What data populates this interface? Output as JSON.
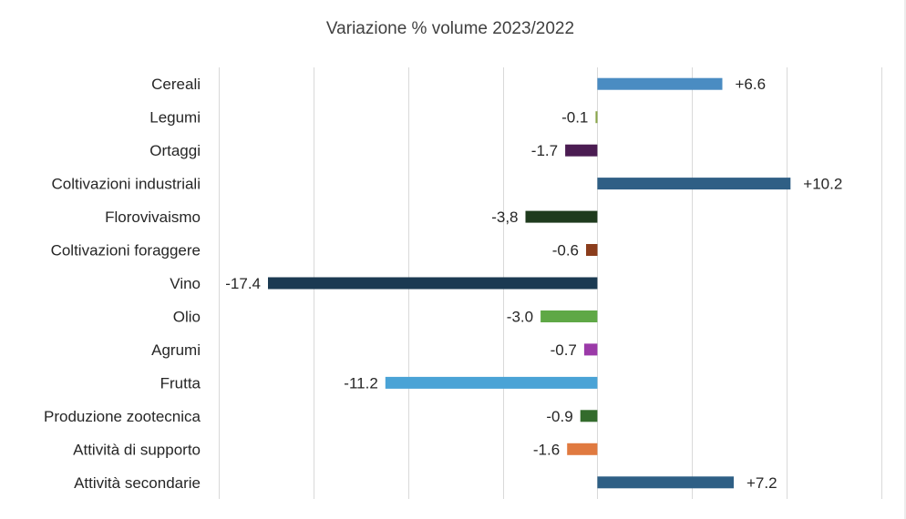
{
  "chart_data": {
    "type": "bar",
    "orientation": "horizontal",
    "title": "Variazione % volume 2023/2022",
    "xlim": [
      -20,
      15
    ],
    "grid": true,
    "legend": "none",
    "categories": [
      "Cereali",
      "Legumi",
      "Ortaggi",
      "Coltivazioni industriali",
      "Florovivaismo",
      "Coltivazioni foraggere",
      "Vino",
      "Olio",
      "Agrumi",
      "Frutta",
      "Produzione zootecnica",
      "Attività di supporto",
      "Attività secondarie"
    ],
    "values": [
      6.6,
      -0.1,
      -1.7,
      10.2,
      -3.8,
      -0.6,
      -17.4,
      -3.0,
      -0.7,
      -11.2,
      -0.9,
      -1.6,
      7.2
    ],
    "data_labels": [
      "+6.6",
      "-0.1",
      "-1.7",
      "+10.2",
      "-3,8",
      "-0.6",
      "-17.4",
      "-3.0",
      "-0.7",
      "-11.2",
      "-0.9",
      "-1.6",
      "+7.2"
    ],
    "colors": [
      "#4a8cc2",
      "#8aa64a",
      "#4b1c52",
      "#2f5f85",
      "#1f3b1e",
      "#8b3d1c",
      "#1b3a52",
      "#5fa846",
      "#9b3aa8",
      "#4aa3d6",
      "#336b2c",
      "#e07a40",
      "#2e5f85"
    ]
  }
}
